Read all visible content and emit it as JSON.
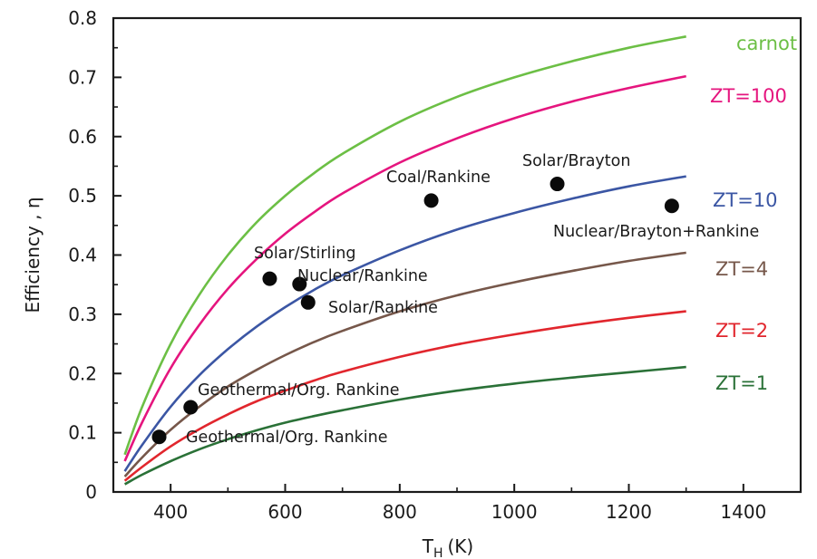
{
  "chart_data": {
    "type": "line",
    "xlabel_main": "T",
    "xlabel_sub": "H",
    "xlabel_unit": "(K)",
    "ylabel": "Efficiency , η",
    "xlim": [
      300,
      1500
    ],
    "ylim": [
      0,
      0.8
    ],
    "x_ticks": [
      400,
      600,
      800,
      1000,
      1200,
      1400
    ],
    "y_ticks": [
      0,
      0.1,
      0.2,
      0.3,
      0.4,
      0.5,
      0.6,
      0.7,
      0.8
    ],
    "grid": false,
    "series": [
      {
        "name": "carnot",
        "color": "#6cbf45",
        "x": [
          320,
          350,
          400,
          450,
          500,
          550,
          600,
          650,
          700,
          800,
          900,
          1000,
          1100,
          1200,
          1300
        ],
        "y": [
          0.063,
          0.143,
          0.25,
          0.333,
          0.4,
          0.455,
          0.5,
          0.538,
          0.571,
          0.625,
          0.667,
          0.7,
          0.727,
          0.75,
          0.769
        ]
      },
      {
        "name": "ZT=100",
        "color": "#e5157e",
        "x": [
          320,
          350,
          400,
          450,
          500,
          550,
          600,
          650,
          700,
          800,
          900,
          1000,
          1100,
          1200,
          1300
        ],
        "y": [
          0.052,
          0.117,
          0.209,
          0.282,
          0.343,
          0.393,
          0.436,
          0.472,
          0.504,
          0.556,
          0.597,
          0.631,
          0.659,
          0.682,
          0.702
        ]
      },
      {
        "name": "ZT=10",
        "color": "#3b56a4",
        "x": [
          320,
          350,
          400,
          450,
          500,
          550,
          600,
          650,
          700,
          800,
          900,
          1000,
          1100,
          1200,
          1300
        ],
        "y": [
          0.035,
          0.079,
          0.144,
          0.197,
          0.241,
          0.279,
          0.312,
          0.341,
          0.366,
          0.408,
          0.443,
          0.471,
          0.495,
          0.516,
          0.533
        ]
      },
      {
        "name": "ZT=4",
        "color": "#76574a",
        "x": [
          320,
          350,
          400,
          450,
          500,
          550,
          600,
          650,
          700,
          800,
          900,
          1000,
          1100,
          1200,
          1300
        ],
        "y": [
          0.026,
          0.058,
          0.105,
          0.144,
          0.178,
          0.206,
          0.231,
          0.253,
          0.272,
          0.305,
          0.332,
          0.354,
          0.373,
          0.39,
          0.404
        ]
      },
      {
        "name": "ZT=2",
        "color": "#e1262d",
        "x": [
          320,
          350,
          400,
          450,
          500,
          550,
          600,
          650,
          700,
          800,
          900,
          1000,
          1100,
          1200,
          1300
        ],
        "y": [
          0.019,
          0.042,
          0.077,
          0.106,
          0.131,
          0.153,
          0.171,
          0.188,
          0.203,
          0.228,
          0.249,
          0.266,
          0.281,
          0.294,
          0.305
        ]
      },
      {
        "name": "ZT=1",
        "color": "#2a7137",
        "x": [
          320,
          350,
          400,
          450,
          500,
          550,
          600,
          650,
          700,
          800,
          900,
          1000,
          1100,
          1200,
          1300
        ],
        "y": [
          0.013,
          0.029,
          0.052,
          0.072,
          0.089,
          0.104,
          0.117,
          0.128,
          0.138,
          0.156,
          0.171,
          0.183,
          0.193,
          0.202,
          0.211
        ]
      }
    ],
    "points": [
      {
        "label": "Geothermal/Org. Rankine",
        "x": 380,
        "y": 0.093
      },
      {
        "label": "Geothermal/Org. Rankine",
        "x": 435,
        "y": 0.143
      },
      {
        "label": "Solar/Stirling",
        "x": 573,
        "y": 0.36
      },
      {
        "label": "Nuclear/Rankine",
        "x": 625,
        "y": 0.351
      },
      {
        "label": "Solar/Rankine",
        "x": 640,
        "y": 0.32
      },
      {
        "label": "Coal/Rankine",
        "x": 855,
        "y": 0.492
      },
      {
        "label": "Solar/Brayton",
        "x": 1075,
        "y": 0.52
      },
      {
        "label": "Nuclear/Brayton+Rankine",
        "x": 1275,
        "y": 0.483
      }
    ]
  }
}
